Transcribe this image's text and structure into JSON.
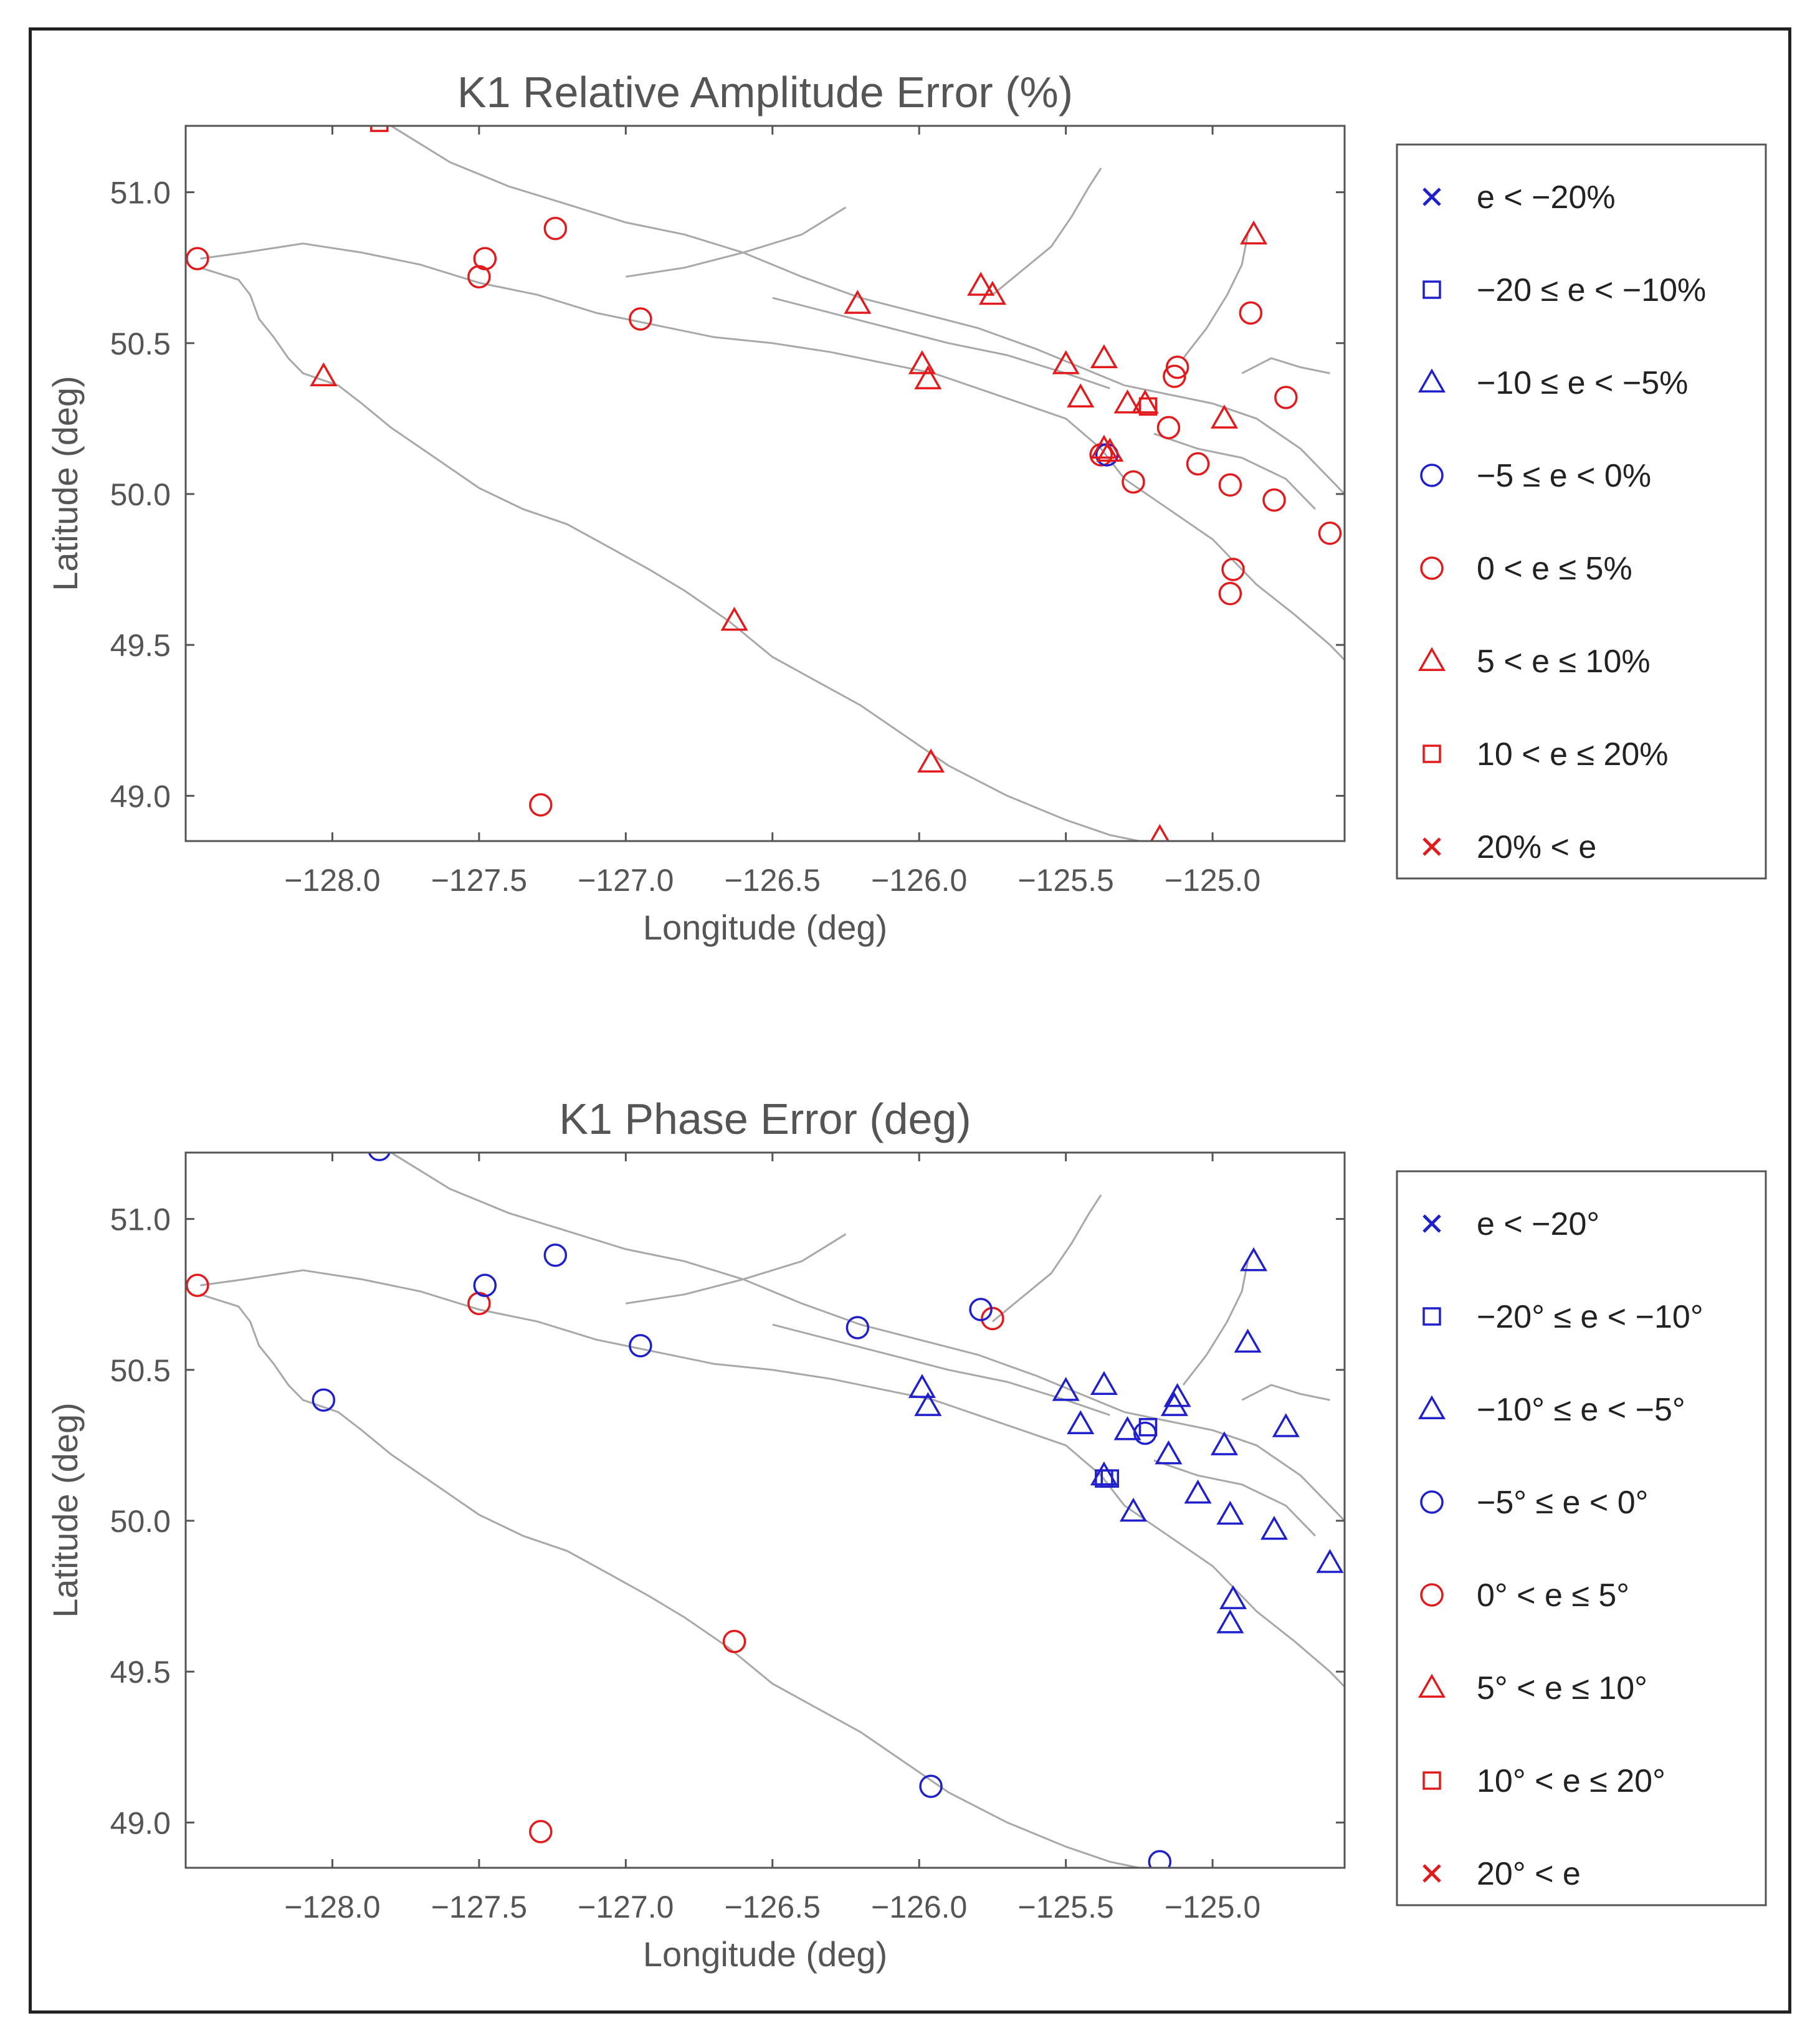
{
  "colors": {
    "negative": "#1f1fcc",
    "positive": "#e31a1c",
    "coast": "#a8a8a8",
    "axis": "#555555"
  },
  "chart_data": [
    {
      "type": "scatter",
      "title": "K1 Relative Amplitude Error (%)",
      "xlabel": "Longitude (deg)",
      "ylabel": "Latitude (deg)",
      "xlim": [
        -128.5,
        -124.55
      ],
      "ylim": [
        48.85,
        51.22
      ],
      "xticks": [
        "−128.0",
        "−127.5",
        "−127.0",
        "−126.5",
        "−126.0",
        "−125.5",
        "−125.0"
      ],
      "xtick_values": [
        -128.0,
        -127.5,
        -127.0,
        -126.5,
        -126.0,
        -125.5,
        -125.0
      ],
      "yticks": [
        "49.0",
        "49.5",
        "50.0",
        "50.5",
        "51.0"
      ],
      "ytick_values": [
        49.0,
        49.5,
        50.0,
        50.5,
        51.0
      ],
      "legend": [
        {
          "label": "e < −20%",
          "marker": "x",
          "color": "negative"
        },
        {
          "label": "−20 ≤ e < −10%",
          "marker": "square",
          "color": "negative"
        },
        {
          "label": "−10 ≤ e < −5%",
          "marker": "triangle",
          "color": "negative"
        },
        {
          "label": "−5 ≤ e < 0%",
          "marker": "circle",
          "color": "negative"
        },
        {
          "label": "0 < e ≤ 5%",
          "marker": "circle",
          "color": "positive"
        },
        {
          "label": "5 < e ≤ 10%",
          "marker": "triangle",
          "color": "positive"
        },
        {
          "label": "10 < e ≤ 20%",
          "marker": "square",
          "color": "positive"
        },
        {
          "label": "20% < e",
          "marker": "x",
          "color": "positive"
        }
      ],
      "points": [
        {
          "lon": -128.46,
          "lat": 50.78,
          "cls": 4
        },
        {
          "lon": -127.48,
          "lat": 50.78,
          "cls": 4
        },
        {
          "lon": -127.5,
          "lat": 50.72,
          "cls": 4
        },
        {
          "lon": -127.24,
          "lat": 50.88,
          "cls": 4
        },
        {
          "lon": -126.95,
          "lat": 50.58,
          "cls": 4
        },
        {
          "lon": -127.29,
          "lat": 48.97,
          "cls": 4
        },
        {
          "lon": -125.15,
          "lat": 50.22,
          "cls": 4
        },
        {
          "lon": -125.13,
          "lat": 50.39,
          "cls": 4
        },
        {
          "lon": -125.12,
          "lat": 50.42,
          "cls": 4
        },
        {
          "lon": -125.05,
          "lat": 50.1,
          "cls": 4
        },
        {
          "lon": -125.27,
          "lat": 50.04,
          "cls": 4
        },
        {
          "lon": -124.94,
          "lat": 50.03,
          "cls": 4
        },
        {
          "lon": -124.87,
          "lat": 50.6,
          "cls": 4
        },
        {
          "lon": -124.79,
          "lat": 49.98,
          "cls": 4
        },
        {
          "lon": -124.75,
          "lat": 50.32,
          "cls": 4
        },
        {
          "lon": -124.6,
          "lat": 49.87,
          "cls": 4
        },
        {
          "lon": -124.93,
          "lat": 49.75,
          "cls": 4
        },
        {
          "lon": -124.94,
          "lat": 49.67,
          "cls": 4
        },
        {
          "lon": -125.38,
          "lat": 50.13,
          "cls": 4
        },
        {
          "lon": -125.36,
          "lat": 50.13,
          "cls": 3
        },
        {
          "lon": -128.03,
          "lat": 50.39,
          "cls": 5
        },
        {
          "lon": -126.63,
          "lat": 49.58,
          "cls": 5
        },
        {
          "lon": -125.96,
          "lat": 49.11,
          "cls": 5
        },
        {
          "lon": -125.18,
          "lat": 48.86,
          "cls": 5
        },
        {
          "lon": -126.21,
          "lat": 50.63,
          "cls": 5
        },
        {
          "lon": -125.79,
          "lat": 50.69,
          "cls": 5
        },
        {
          "lon": -125.75,
          "lat": 50.66,
          "cls": 5
        },
        {
          "lon": -125.99,
          "lat": 50.43,
          "cls": 5
        },
        {
          "lon": -125.97,
          "lat": 50.38,
          "cls": 5
        },
        {
          "lon": -125.5,
          "lat": 50.43,
          "cls": 5
        },
        {
          "lon": -125.37,
          "lat": 50.45,
          "cls": 5
        },
        {
          "lon": -125.45,
          "lat": 50.32,
          "cls": 5
        },
        {
          "lon": -125.29,
          "lat": 50.3,
          "cls": 5
        },
        {
          "lon": -125.23,
          "lat": 50.3,
          "cls": 5
        },
        {
          "lon": -124.96,
          "lat": 50.25,
          "cls": 5
        },
        {
          "lon": -124.86,
          "lat": 50.86,
          "cls": 5
        },
        {
          "lon": -125.37,
          "lat": 50.15,
          "cls": 5
        },
        {
          "lon": -125.35,
          "lat": 50.14,
          "cls": 5
        },
        {
          "lon": -127.84,
          "lat": 51.23,
          "cls": 6
        },
        {
          "lon": -125.22,
          "lat": 50.29,
          "cls": 6
        }
      ]
    },
    {
      "type": "scatter",
      "title": "K1 Phase Error (deg)",
      "xlabel": "Longitude (deg)",
      "ylabel": "Latitude (deg)",
      "xlim": [
        -128.5,
        -124.55
      ],
      "ylim": [
        48.85,
        51.22
      ],
      "xticks": [
        "−128.0",
        "−127.5",
        "−127.0",
        "−126.5",
        "−126.0",
        "−125.5",
        "−125.0"
      ],
      "xtick_values": [
        -128.0,
        -127.5,
        -127.0,
        -126.5,
        -126.0,
        -125.5,
        -125.0
      ],
      "yticks": [
        "49.0",
        "49.5",
        "50.0",
        "50.5",
        "51.0"
      ],
      "ytick_values": [
        49.0,
        49.5,
        50.0,
        50.5,
        51.0
      ],
      "legend": [
        {
          "label": "e < −20°",
          "marker": "x",
          "color": "negative"
        },
        {
          "label": "−20° ≤ e < −10°",
          "marker": "square",
          "color": "negative"
        },
        {
          "label": "−10° ≤ e < −5°",
          "marker": "triangle",
          "color": "negative"
        },
        {
          "label": "−5° ≤ e < 0°",
          "marker": "circle",
          "color": "negative"
        },
        {
          "label": "0° < e ≤ 5°",
          "marker": "circle",
          "color": "positive"
        },
        {
          "label": "5° < e ≤ 10°",
          "marker": "triangle",
          "color": "positive"
        },
        {
          "label": "10° < e ≤ 20°",
          "marker": "square",
          "color": "positive"
        },
        {
          "label": "20° < e",
          "marker": "x",
          "color": "positive"
        }
      ],
      "points": [
        {
          "lon": -128.46,
          "lat": 50.78,
          "cls": 4
        },
        {
          "lon": -127.5,
          "lat": 50.72,
          "cls": 4
        },
        {
          "lon": -127.29,
          "lat": 48.97,
          "cls": 4
        },
        {
          "lon": -126.63,
          "lat": 49.6,
          "cls": 4
        },
        {
          "lon": -125.75,
          "lat": 50.67,
          "cls": 4
        },
        {
          "lon": -128.03,
          "lat": 50.4,
          "cls": 3
        },
        {
          "lon": -127.48,
          "lat": 50.78,
          "cls": 3
        },
        {
          "lon": -127.24,
          "lat": 50.88,
          "cls": 3
        },
        {
          "lon": -126.95,
          "lat": 50.58,
          "cls": 3
        },
        {
          "lon": -126.21,
          "lat": 50.64,
          "cls": 3
        },
        {
          "lon": -125.79,
          "lat": 50.7,
          "cls": 3
        },
        {
          "lon": -125.96,
          "lat": 49.12,
          "cls": 3
        },
        {
          "lon": -125.18,
          "lat": 48.87,
          "cls": 3
        },
        {
          "lon": -127.84,
          "lat": 51.23,
          "cls": 3
        },
        {
          "lon": -125.23,
          "lat": 50.29,
          "cls": 3
        },
        {
          "lon": -125.37,
          "lat": 50.14,
          "cls": 1
        },
        {
          "lon": -125.35,
          "lat": 50.14,
          "cls": 1
        },
        {
          "lon": -125.22,
          "lat": 50.31,
          "cls": 1
        },
        {
          "lon": -125.99,
          "lat": 50.44,
          "cls": 2
        },
        {
          "lon": -125.97,
          "lat": 50.38,
          "cls": 2
        },
        {
          "lon": -125.5,
          "lat": 50.43,
          "cls": 2
        },
        {
          "lon": -125.37,
          "lat": 50.45,
          "cls": 2
        },
        {
          "lon": -125.45,
          "lat": 50.32,
          "cls": 2
        },
        {
          "lon": -125.29,
          "lat": 50.3,
          "cls": 2
        },
        {
          "lon": -125.13,
          "lat": 50.38,
          "cls": 2
        },
        {
          "lon": -125.12,
          "lat": 50.41,
          "cls": 2
        },
        {
          "lon": -125.15,
          "lat": 50.22,
          "cls": 2
        },
        {
          "lon": -124.96,
          "lat": 50.25,
          "cls": 2
        },
        {
          "lon": -124.86,
          "lat": 50.86,
          "cls": 2
        },
        {
          "lon": -124.88,
          "lat": 50.59,
          "cls": 2
        },
        {
          "lon": -124.75,
          "lat": 50.31,
          "cls": 2
        },
        {
          "lon": -125.05,
          "lat": 50.09,
          "cls": 2
        },
        {
          "lon": -125.27,
          "lat": 50.03,
          "cls": 2
        },
        {
          "lon": -124.94,
          "lat": 50.02,
          "cls": 2
        },
        {
          "lon": -124.79,
          "lat": 49.97,
          "cls": 2
        },
        {
          "lon": -124.6,
          "lat": 49.86,
          "cls": 2
        },
        {
          "lon": -124.93,
          "lat": 49.74,
          "cls": 2
        },
        {
          "lon": -124.94,
          "lat": 49.66,
          "cls": 2
        },
        {
          "lon": -125.37,
          "lat": 50.15,
          "cls": 2
        }
      ]
    }
  ],
  "coastlines": [
    {
      "name": "vancouver-island-outer-coast",
      "lonlat": [
        [
          -128.45,
          50.75
        ],
        [
          -128.32,
          50.71
        ],
        [
          -128.28,
          50.66
        ],
        [
          -128.25,
          50.58
        ],
        [
          -128.2,
          50.52
        ],
        [
          -128.15,
          50.45
        ],
        [
          -128.1,
          50.4
        ],
        [
          -127.98,
          50.36
        ],
        [
          -127.9,
          50.3
        ],
        [
          -127.8,
          50.22
        ],
        [
          -127.65,
          50.12
        ],
        [
          -127.5,
          50.02
        ],
        [
          -127.35,
          49.95
        ],
        [
          -127.2,
          49.9
        ],
        [
          -127.05,
          49.82
        ],
        [
          -126.92,
          49.75
        ],
        [
          -126.8,
          49.68
        ],
        [
          -126.65,
          49.58
        ],
        [
          -126.5,
          49.46
        ],
        [
          -126.35,
          49.38
        ],
        [
          -126.2,
          49.3
        ],
        [
          -126.05,
          49.2
        ],
        [
          -125.9,
          49.1
        ],
        [
          -125.7,
          49.0
        ],
        [
          -125.5,
          48.92
        ],
        [
          -125.35,
          48.87
        ],
        [
          -125.25,
          48.85
        ]
      ]
    },
    {
      "name": "vancouver-island-inner-coast",
      "lonlat": [
        [
          -128.45,
          50.78
        ],
        [
          -128.3,
          50.8
        ],
        [
          -128.1,
          50.83
        ],
        [
          -127.9,
          50.8
        ],
        [
          -127.7,
          50.76
        ],
        [
          -127.5,
          50.7
        ],
        [
          -127.3,
          50.66
        ],
        [
          -127.1,
          50.6
        ],
        [
          -126.9,
          50.56
        ],
        [
          -126.7,
          50.52
        ],
        [
          -126.5,
          50.5
        ],
        [
          -126.3,
          50.47
        ],
        [
          -126.1,
          50.43
        ],
        [
          -125.95,
          50.4
        ],
        [
          -125.8,
          50.35
        ],
        [
          -125.65,
          50.3
        ],
        [
          -125.5,
          50.25
        ],
        [
          -125.38,
          50.15
        ],
        [
          -125.3,
          50.05
        ],
        [
          -125.15,
          49.95
        ],
        [
          -125.0,
          49.85
        ],
        [
          -124.85,
          49.7
        ],
        [
          -124.72,
          49.6
        ],
        [
          -124.6,
          49.5
        ],
        [
          -124.55,
          49.45
        ]
      ]
    },
    {
      "name": "mainland-coast",
      "lonlat": [
        [
          -127.8,
          51.22
        ],
        [
          -127.6,
          51.1
        ],
        [
          -127.4,
          51.02
        ],
        [
          -127.2,
          50.96
        ],
        [
          -127.0,
          50.9
        ],
        [
          -126.8,
          50.86
        ],
        [
          -126.6,
          50.8
        ],
        [
          -126.4,
          50.72
        ],
        [
          -126.2,
          50.65
        ],
        [
          -126.0,
          50.6
        ],
        [
          -125.8,
          50.55
        ],
        [
          -125.6,
          50.48
        ],
        [
          -125.45,
          50.42
        ],
        [
          -125.3,
          50.36
        ],
        [
          -125.15,
          50.33
        ],
        [
          -125.0,
          50.3
        ],
        [
          -124.85,
          50.25
        ],
        [
          -124.7,
          50.15
        ],
        [
          -124.6,
          50.05
        ],
        [
          -124.55,
          50.0
        ]
      ]
    },
    {
      "name": "knight-inlet",
      "lonlat": [
        [
          -125.75,
          50.66
        ],
        [
          -125.65,
          50.74
        ],
        [
          -125.55,
          50.82
        ],
        [
          -125.48,
          50.92
        ],
        [
          -125.42,
          51.02
        ],
        [
          -125.38,
          51.08
        ]
      ]
    },
    {
      "name": "bute-inlet",
      "lonlat": [
        [
          -125.1,
          50.45
        ],
        [
          -125.02,
          50.55
        ],
        [
          -124.95,
          50.66
        ],
        [
          -124.9,
          50.76
        ],
        [
          -124.88,
          50.86
        ]
      ]
    },
    {
      "name": "inner-channel-a",
      "lonlat": [
        [
          -126.5,
          50.65
        ],
        [
          -126.3,
          50.6
        ],
        [
          -126.1,
          50.55
        ],
        [
          -125.9,
          50.5
        ],
        [
          -125.7,
          50.46
        ],
        [
          -125.5,
          50.4
        ],
        [
          -125.35,
          50.35
        ]
      ]
    },
    {
      "name": "inner-channel-b",
      "lonlat": [
        [
          -127.0,
          50.72
        ],
        [
          -126.8,
          50.75
        ],
        [
          -126.6,
          50.8
        ],
        [
          -126.4,
          50.86
        ],
        [
          -126.25,
          50.95
        ]
      ]
    },
    {
      "name": "islands-channel",
      "lonlat": [
        [
          -125.2,
          50.2
        ],
        [
          -125.05,
          50.15
        ],
        [
          -124.9,
          50.12
        ],
        [
          -124.75,
          50.05
        ],
        [
          -124.65,
          49.95
        ]
      ]
    },
    {
      "name": "sound-arm",
      "lonlat": [
        [
          -124.9,
          50.4
        ],
        [
          -124.8,
          50.45
        ],
        [
          -124.7,
          50.42
        ],
        [
          -124.6,
          50.4
        ]
      ]
    }
  ]
}
